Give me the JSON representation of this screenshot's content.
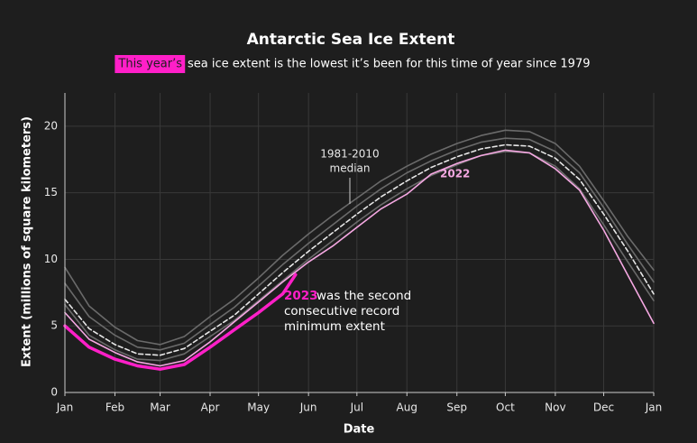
{
  "chart_data": {
    "type": "line",
    "title": "Antarctic Sea Ice Extent",
    "subtitle_highlight": "This year’s",
    "subtitle": "sea ice extent is the lowest it’s been for this time of year since 1979",
    "x_label": "Date",
    "y_label": "Extent (millions of square kilometers)",
    "x": [
      0,
      15,
      31,
      45,
      59,
      74,
      90,
      105,
      120,
      135,
      151,
      166,
      181,
      196,
      212,
      227,
      243,
      258,
      273,
      288,
      304,
      319,
      334,
      349,
      365
    ],
    "xlim": [
      0,
      365
    ],
    "xticks": [
      {
        "value": 0,
        "label": "Jan"
      },
      {
        "value": 31,
        "label": "Feb"
      },
      {
        "value": 59,
        "label": "Mar"
      },
      {
        "value": 90,
        "label": "Apr"
      },
      {
        "value": 120,
        "label": "May"
      },
      {
        "value": 151,
        "label": "Jun"
      },
      {
        "value": 181,
        "label": "Jul"
      },
      {
        "value": 212,
        "label": "Aug"
      },
      {
        "value": 243,
        "label": "Sep"
      },
      {
        "value": 273,
        "label": "Oct"
      },
      {
        "value": 304,
        "label": "Nov"
      },
      {
        "value": 334,
        "label": "Dec"
      },
      {
        "value": 365,
        "label": "Jan"
      }
    ],
    "ylim": [
      0,
      22.5
    ],
    "yticks": [
      0,
      5,
      10,
      15,
      20
    ],
    "grid": true,
    "median_note": [
      "1981-2010",
      "median"
    ],
    "note_2023": [
      "was the second",
      "consecutive record",
      "minimum extent"
    ],
    "series": [
      {
        "color": "#6a6a6a",
        "values": [
          9.4,
          6.5,
          4.9,
          3.9,
          3.6,
          4.2,
          5.7,
          7.0,
          8.6,
          10.3,
          11.9,
          13.3,
          14.6,
          15.9,
          17.0,
          17.9,
          18.7,
          19.3,
          19.7,
          19.6,
          18.7,
          17.0,
          14.4,
          11.7,
          9.2
        ]
      },
      {
        "color": "#6a6a6a",
        "values": [
          6.6,
          4.3,
          3.2,
          2.5,
          2.4,
          2.9,
          4.2,
          5.4,
          6.9,
          8.4,
          10.0,
          11.4,
          12.8,
          14.1,
          15.3,
          16.3,
          17.1,
          17.8,
          18.1,
          18.0,
          17.0,
          15.3,
          12.6,
          9.8,
          6.9
        ]
      },
      {
        "color": "#6a6a6a",
        "values": [
          8.2,
          5.7,
          4.3,
          3.4,
          3.2,
          3.7,
          5.1,
          6.4,
          8.0,
          9.6,
          11.2,
          12.6,
          14.0,
          15.3,
          16.5,
          17.4,
          18.2,
          18.8,
          19.1,
          19.0,
          18.1,
          16.5,
          13.9,
          11.1,
          8.3
        ]
      },
      {
        "color": "#e6e6e6",
        "dashed": true,
        "values": [
          7.0,
          4.8,
          3.6,
          2.9,
          2.8,
          3.3,
          4.6,
          5.8,
          7.4,
          9.0,
          10.6,
          12.0,
          13.4,
          14.7,
          15.9,
          16.9,
          17.7,
          18.3,
          18.6,
          18.5,
          17.6,
          16.0,
          13.4,
          10.6,
          7.4
        ]
      },
      {
        "name": "2022",
        "color": "#f5a8e2",
        "values": [
          6.0,
          4.0,
          3.0,
          2.3,
          2.0,
          2.4,
          3.8,
          5.3,
          6.8,
          8.3,
          9.8,
          11.0,
          12.4,
          13.8,
          14.9,
          16.4,
          17.2,
          17.8,
          18.2,
          18.0,
          16.8,
          15.2,
          12.2,
          8.8,
          5.2
        ]
      },
      {
        "name": "2023",
        "color": "#ff1fc8",
        "width": 3.5,
        "x": [
          0,
          15,
          31,
          45,
          59,
          74,
          90,
          105,
          120,
          135,
          143
        ],
        "values": [
          5.0,
          3.4,
          2.5,
          2.0,
          1.75,
          2.1,
          3.4,
          4.7,
          6.0,
          7.4,
          8.85
        ]
      }
    ]
  }
}
